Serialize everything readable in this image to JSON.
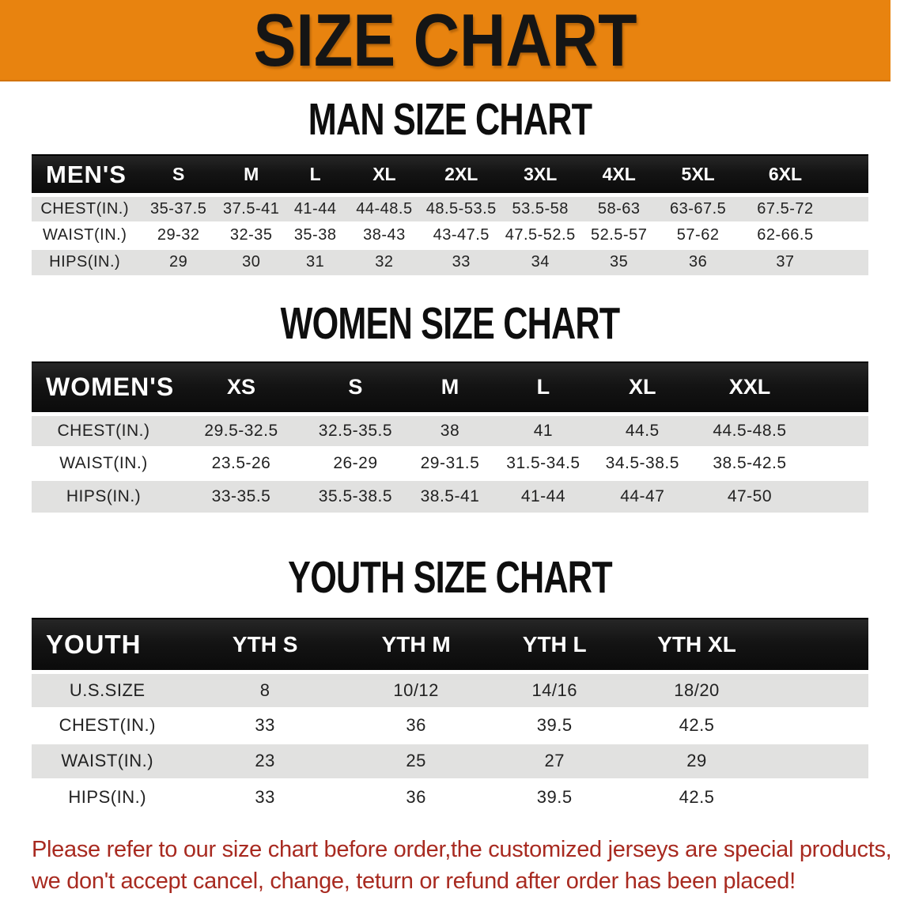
{
  "theme": {
    "banner_bg": "#E8830F",
    "banner_text": "#151515",
    "header_bar_bg": "#141414",
    "header_bar_text": "#FFFFFF",
    "shaded_row_bg": "#E1E1E0",
    "plain_row_bg": "#FFFFFF",
    "heading_text": "#0E0E0E",
    "body_text": "#222222",
    "notice_text": "#A82A20"
  },
  "banner": {
    "title": "SIZE CHART"
  },
  "sections": [
    {
      "heading": "MAN SIZE CHART",
      "table": {
        "label": "MEN'S",
        "columns": [
          "S",
          "M",
          "L",
          "XL",
          "2XL",
          "3XL",
          "4XL",
          "5XL",
          "6XL"
        ],
        "rows": [
          {
            "label": "CHEST(IN.)",
            "values": [
              "35-37.5",
              "37.5-41",
              "41-44",
              "44-48.5",
              "48.5-53.5",
              "53.5-58",
              "58-63",
              "63-67.5",
              "67.5-72"
            ]
          },
          {
            "label": "WAIST(IN.)",
            "values": [
              "29-32",
              "32-35",
              "35-38",
              "38-43",
              "43-47.5",
              "47.5-52.5",
              "52.5-57",
              "57-62",
              "62-66.5"
            ]
          },
          {
            "label": "HIPS(IN.)",
            "values": [
              "29",
              "30",
              "31",
              "32",
              "33",
              "34",
              "35",
              "36",
              "37"
            ]
          }
        ]
      }
    },
    {
      "heading": "WOMEN SIZE CHART",
      "table": {
        "label": "WOMEN'S",
        "columns": [
          "XS",
          "S",
          "M",
          "L",
          "XL",
          "XXL"
        ],
        "rows": [
          {
            "label": "CHEST(IN.)",
            "values": [
              "29.5-32.5",
              "32.5-35.5",
              "38",
              "41",
              "44.5",
              "44.5-48.5"
            ]
          },
          {
            "label": "WAIST(IN.)",
            "values": [
              "23.5-26",
              "26-29",
              "29-31.5",
              "31.5-34.5",
              "34.5-38.5",
              "38.5-42.5"
            ]
          },
          {
            "label": "HIPS(IN.)",
            "values": [
              "33-35.5",
              "35.5-38.5",
              "38.5-41",
              "41-44",
              "44-47",
              "47-50"
            ]
          }
        ]
      }
    },
    {
      "heading": "YOUTH SIZE CHART",
      "table": {
        "label": "YOUTH",
        "columns": [
          "YTH S",
          "YTH M",
          "YTH L",
          "YTH XL"
        ],
        "rows": [
          {
            "label": "U.S.SIZE",
            "values": [
              "8",
              "10/12",
              "14/16",
              "18/20"
            ]
          },
          {
            "label": "CHEST(IN.)",
            "values": [
              "33",
              "36",
              "39.5",
              "42.5"
            ]
          },
          {
            "label": "WAIST(IN.)",
            "values": [
              "23",
              "25",
              "27",
              "29"
            ]
          },
          {
            "label": "HIPS(IN.)",
            "values": [
              "33",
              "36",
              "39.5",
              "42.5"
            ]
          }
        ]
      }
    }
  ],
  "footer": {
    "line1": "Please refer to our size chart before order,the customized jerseys are special products,",
    "line2": "we don't accept cancel, change, teturn or refund after order has been placed!"
  }
}
